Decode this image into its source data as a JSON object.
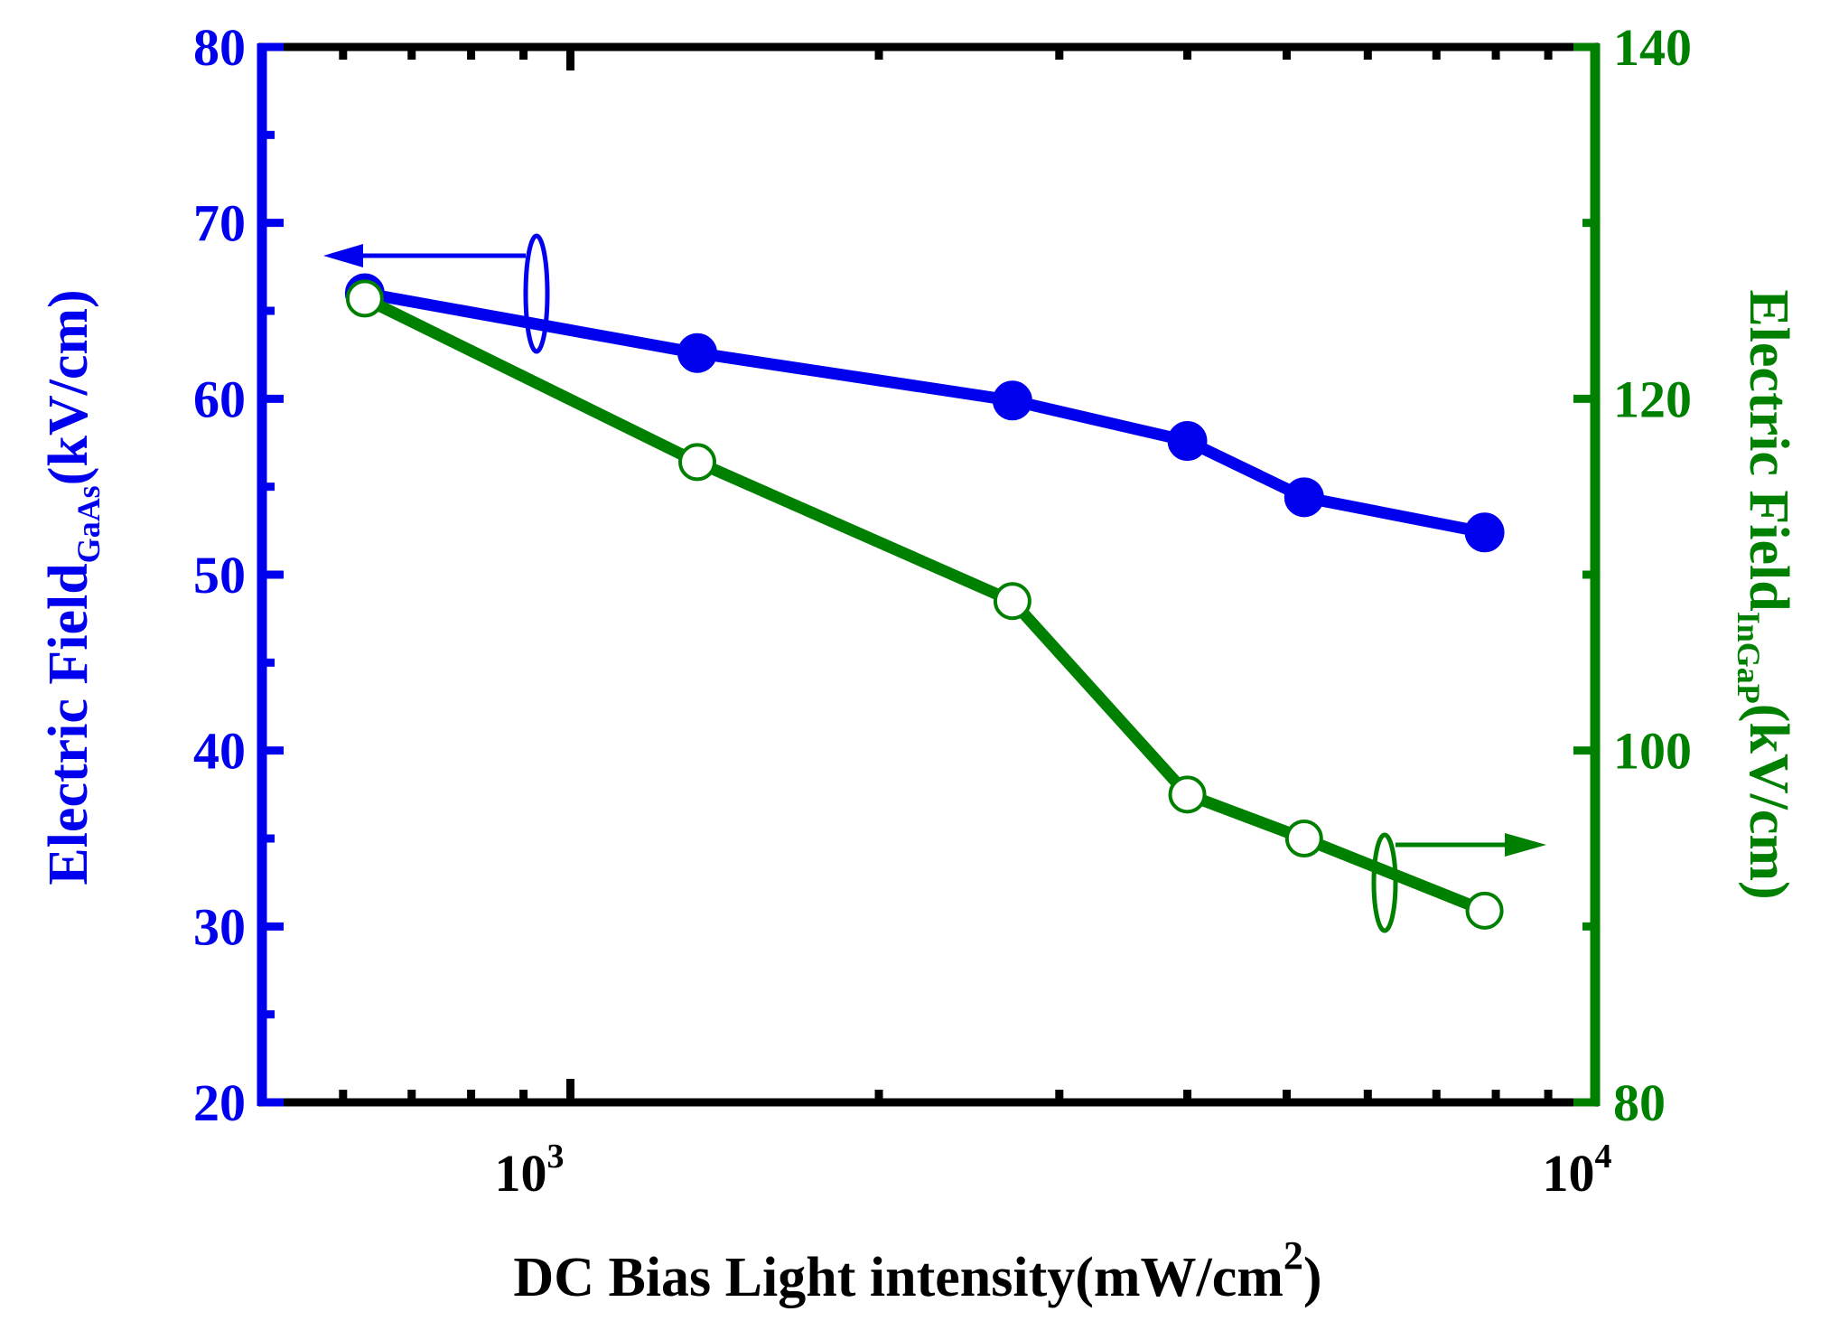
{
  "chart_data": {
    "type": "line",
    "title": "",
    "xlabel": "DC Bias Light intensity(mW/cm",
    "xlabel_sup": "2",
    "xlabel_end": ")",
    "xscale": "log",
    "xlim": [
      500,
      10000
    ],
    "x_tick_labels": [
      {
        "value": 1000,
        "base": "10",
        "exp": "3"
      },
      {
        "value": 10000,
        "base": "10",
        "exp": "4"
      }
    ],
    "ylabel_left": {
      "main": "Electric Field",
      "sub": "GaAs",
      "unit": "(kV/cm)"
    },
    "ylim_left": [
      20,
      80
    ],
    "y_ticks_left": [
      20,
      30,
      40,
      50,
      60,
      70,
      80
    ],
    "ylabel_right": {
      "main": "Electric Field",
      "sub": "InGaP",
      "unit": "(kV/cm)"
    },
    "ylim_right": [
      80,
      140
    ],
    "y_ticks_right": [
      80,
      100,
      120,
      140
    ],
    "colors": {
      "gaas": "#0000ee",
      "ingap": "#008000",
      "frame": "#000000"
    },
    "series": [
      {
        "name": "GaAs",
        "axis": "left",
        "marker": "filled-circle",
        "x": [
          630,
          1330,
          2700,
          4000,
          5200,
          7800
        ],
        "values": [
          66.0,
          62.6,
          59.9,
          57.6,
          54.4,
          52.4
        ]
      },
      {
        "name": "InGaP",
        "axis": "right",
        "marker": "open-circle",
        "x": [
          630,
          1330,
          2700,
          4000,
          5200,
          7800
        ],
        "values": [
          125.7,
          116.4,
          108.5,
          97.5,
          95.0,
          90.9
        ]
      }
    ],
    "annotations": [
      {
        "type": "axis-pointer",
        "series": "GaAs",
        "direction": "left"
      },
      {
        "type": "axis-pointer",
        "series": "InGaP",
        "direction": "right"
      }
    ]
  }
}
